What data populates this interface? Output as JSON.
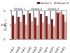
{
  "chart_data": {
    "type": "bar",
    "ylabel": "Score",
    "categories": [
      "Cond A",
      "Cond B",
      "Cond C",
      "Cond D",
      "Cond E",
      "Cond F",
      "Cond G",
      "Cond H",
      "Cond I",
      "Cond J"
    ],
    "series": [
      {
        "name": "Series 1",
        "color": "#8b1a1a",
        "values": [
          0.82,
          0.78,
          0.85,
          0.9,
          0.75,
          0.88,
          0.8,
          0.7,
          0.92,
          0.86
        ]
      },
      {
        "name": "Series 2",
        "color": "#e0a090",
        "values": [
          0.55,
          0.6,
          0.5,
          0.62,
          0.48,
          0.58,
          0.52,
          0.45,
          0.95,
          0.6
        ]
      }
    ],
    "annotations": [
      {
        "text": "Group 1",
        "category": "Cond B"
      },
      {
        "text": "Group 2",
        "category": "Cond E"
      },
      {
        "text": "Group 3",
        "category": "Cond H"
      }
    ],
    "ylim": [
      0,
      1
    ],
    "yticks": [
      0,
      0.5,
      1
    ],
    "grid": false,
    "legend": "top-right"
  }
}
